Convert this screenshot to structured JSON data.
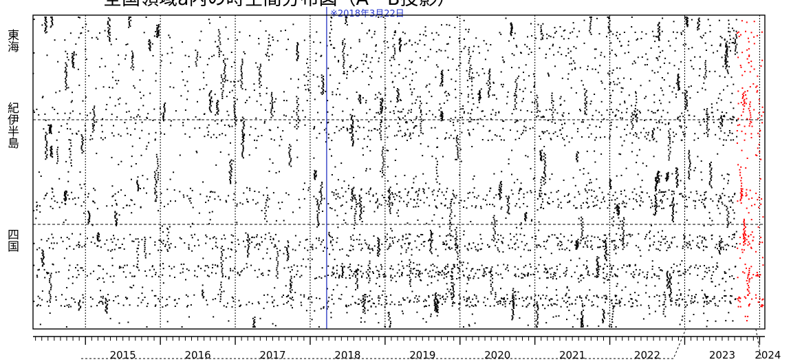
{
  "chart_data": {
    "type": "scatter",
    "title": "全国領域a内の時空間分布図（A－B投影）",
    "annotation": "※2018年3月22日",
    "regions": [
      {
        "label": "東海",
        "ymin": 0,
        "ymax": 1
      },
      {
        "label": "紀伊半島",
        "ymin": 1,
        "ymax": 2
      },
      {
        "label": "四国",
        "ymin": 2,
        "ymax": 3
      }
    ],
    "x_ticks": [
      "2015",
      "2016",
      "2017",
      "2018",
      "2019",
      "2020",
      "2021",
      "2022",
      "2023",
      "2024"
    ],
    "xlim": [
      2014.3,
      2024.07
    ],
    "ylim": [
      0,
      3
    ],
    "marker_date": 2018.22,
    "highlight_start": 2023.7,
    "colors": {
      "events": "#000000",
      "recent_events": "#ff0000",
      "marker": "#1f2fbf",
      "frame": "#000000"
    }
  }
}
